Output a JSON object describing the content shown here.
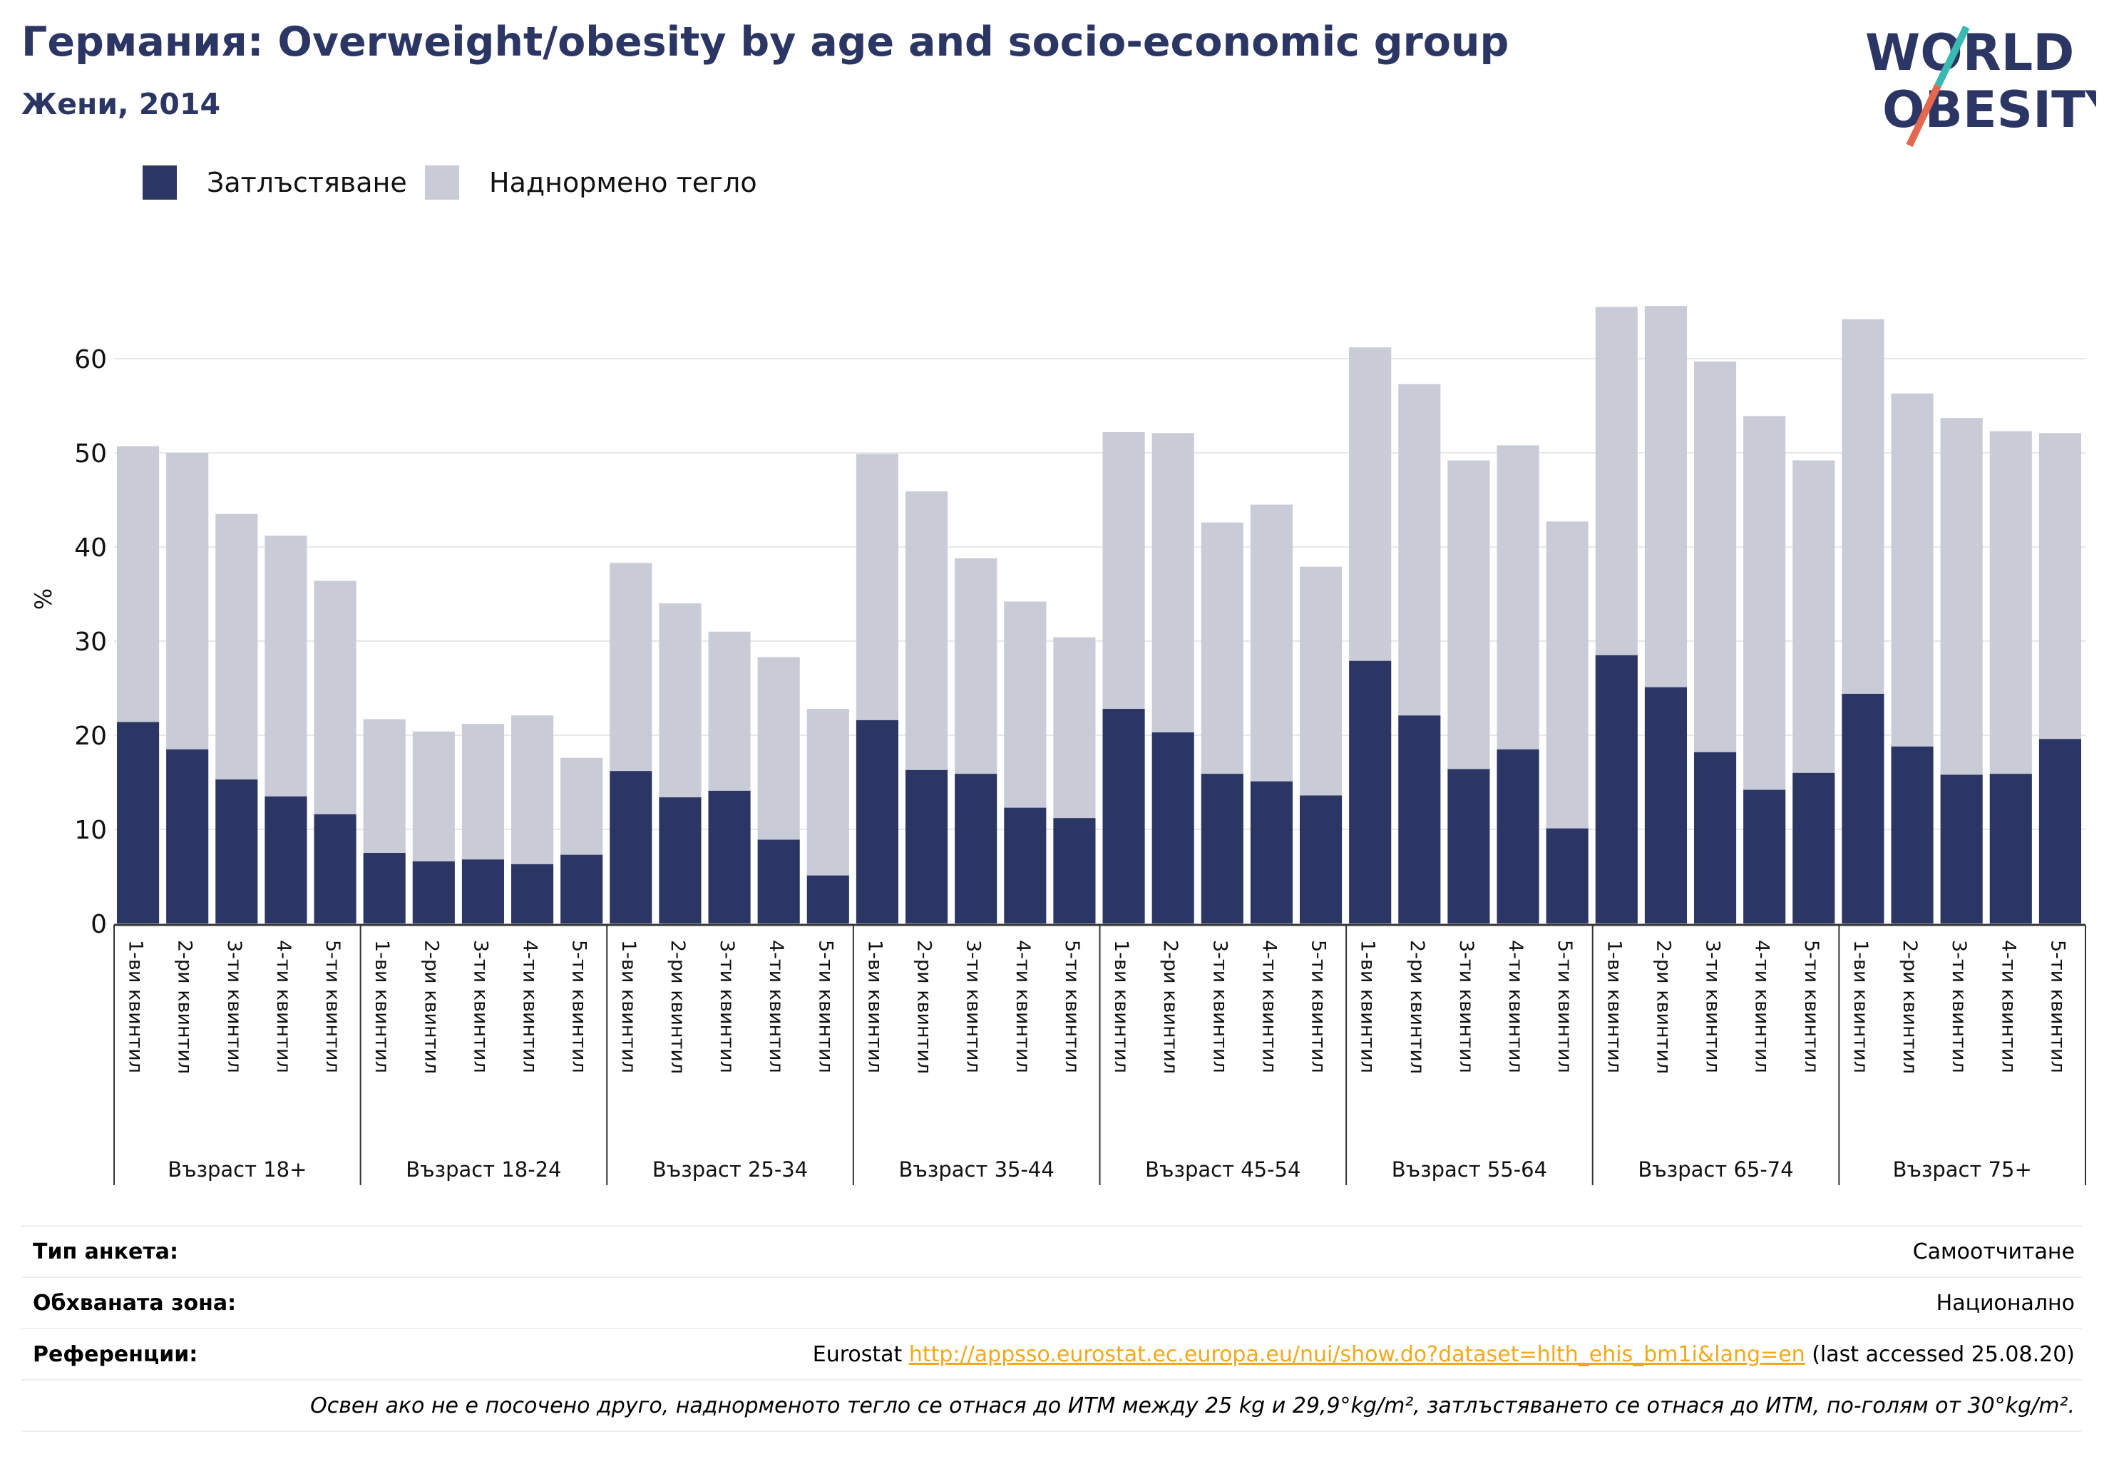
{
  "header": {
    "title": "Германия: Overweight/obesity by age and socio-economic group",
    "subtitle": "Жени, 2014"
  },
  "logo": {
    "line1": "WORLD",
    "line2": "OBESITY",
    "icon": "world-obesity-logo"
  },
  "colors": {
    "obesity": "#2b3664",
    "overweight": "#c9cbd7",
    "title": "#2b3664",
    "link": "#f2a81d"
  },
  "legend": [
    {
      "label": "Затлъстяване",
      "color": "#2b3664"
    },
    {
      "label": "Наднормено тегло",
      "color": "#c9cbd7"
    }
  ],
  "chart_data": {
    "type": "bar",
    "stacked": true,
    "ylabel": "%",
    "ylim": [
      0,
      70
    ],
    "yticks": [
      0,
      10,
      20,
      30,
      40,
      50,
      60
    ],
    "grid": true,
    "legend_position": "top-left",
    "groups": [
      "Възраст 18+",
      "Възраст 18-24",
      "Възраст 25-34",
      "Възраст 35-44",
      "Възраст 45-54",
      "Възраст 55-64",
      "Възраст 65-74",
      "Възраст 75+"
    ],
    "categories": [
      "1-ви квинтил",
      "2-ри квинтил",
      "3-ти квинтил",
      "4-ти квинтил",
      "5-ти квинтил"
    ],
    "series": [
      {
        "name": "Затлъстяване",
        "values": [
          [
            21.4,
            18.5,
            15.3,
            13.5,
            11.6
          ],
          [
            7.5,
            6.6,
            6.8,
            6.3,
            7.3
          ],
          [
            16.2,
            13.4,
            14.1,
            8.9,
            5.1
          ],
          [
            21.6,
            16.3,
            15.9,
            12.3,
            11.2
          ],
          [
            22.8,
            20.3,
            15.9,
            15.1,
            13.6
          ],
          [
            27.9,
            22.1,
            16.4,
            18.5,
            10.1
          ],
          [
            28.5,
            25.1,
            18.2,
            14.2,
            16.0
          ],
          [
            24.4,
            18.8,
            15.8,
            15.9,
            19.6
          ]
        ]
      },
      {
        "name": "Наднормено тегло",
        "values": [
          [
            29.3,
            31.5,
            28.2,
            27.7,
            24.8
          ],
          [
            14.2,
            13.8,
            14.4,
            15.8,
            10.3
          ],
          [
            22.1,
            20.6,
            16.9,
            19.4,
            17.7
          ],
          [
            28.3,
            29.6,
            22.9,
            21.9,
            19.2
          ],
          [
            29.4,
            31.8,
            26.7,
            29.4,
            24.3
          ],
          [
            33.3,
            35.2,
            32.8,
            32.3,
            32.6
          ],
          [
            37.0,
            40.5,
            41.5,
            39.7,
            33.2
          ],
          [
            39.8,
            37.5,
            37.9,
            36.4,
            32.5
          ]
        ]
      }
    ]
  },
  "info": {
    "survey_type": {
      "label": "Тип анкета:",
      "value": "Самоотчитане"
    },
    "coverage": {
      "label": "Обхваната зона:",
      "value": "Национално"
    },
    "references": {
      "label": "Референции:",
      "source": "Eurostat",
      "url": "http://appsso.eurostat.ec.europa.eu/nui/show.do?dataset=hlth_ehis_bm1i&lang=en",
      "accessed": "(last accessed 25.08.20)"
    },
    "note": "Освен ако не е посочено друго, наднорменото тегло се отнася до ИТМ между 25 kg и 29,9°kg/m², затлъстяването се отнася до ИТМ, по-голям от 30°kg/m²."
  }
}
